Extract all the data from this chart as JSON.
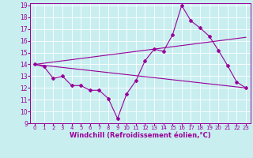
{
  "xlabel": "Windchill (Refroidissement éolien,°C)",
  "bg_color": "#c8eef0",
  "grid_color": "#ffffff",
  "line_color": "#990099",
  "xlim": [
    -0.5,
    23.5
  ],
  "ylim": [
    9,
    19.2
  ],
  "xticks": [
    0,
    1,
    2,
    3,
    4,
    5,
    6,
    7,
    8,
    9,
    10,
    11,
    12,
    13,
    14,
    15,
    16,
    17,
    18,
    19,
    20,
    21,
    22,
    23
  ],
  "yticks": [
    9,
    10,
    11,
    12,
    13,
    14,
    15,
    16,
    17,
    18,
    19
  ],
  "line1_x": [
    0,
    1,
    2,
    3,
    4,
    5,
    6,
    7,
    8,
    9,
    10,
    11,
    12,
    13,
    14,
    15,
    16,
    17,
    18,
    19,
    20,
    21,
    22,
    23
  ],
  "line1_y": [
    14.0,
    13.8,
    12.8,
    13.0,
    12.2,
    12.2,
    11.8,
    11.8,
    11.1,
    9.4,
    11.5,
    12.6,
    14.3,
    15.3,
    15.1,
    16.5,
    19.0,
    17.7,
    17.1,
    16.4,
    15.2,
    13.9,
    12.5,
    12.0
  ],
  "line2_x": [
    0,
    23
  ],
  "line2_y": [
    14.0,
    12.0
  ],
  "line3_x": [
    0,
    23
  ],
  "line3_y": [
    14.0,
    16.3
  ],
  "xlabel_fontsize": 6.0,
  "xlabel_fontweight": "bold",
  "xtick_fontsize": 5.0,
  "ytick_fontsize": 5.5,
  "marker_size": 2.0,
  "linewidth": 0.8
}
